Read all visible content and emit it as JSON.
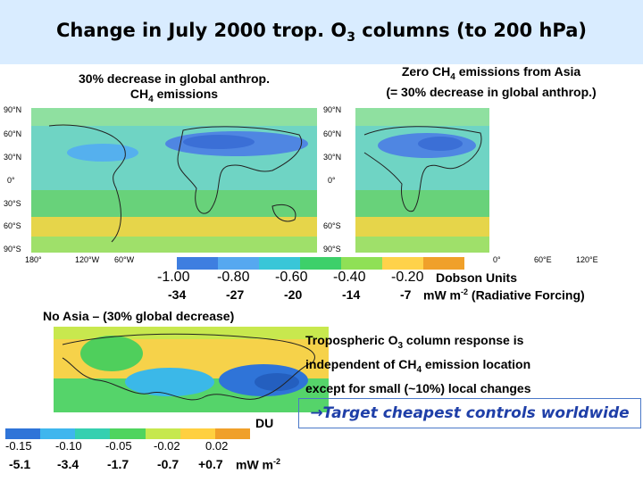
{
  "title": {
    "main": "Change in July 2000 trop. O",
    "sub": "3",
    "rest": " columns (to 200 hPa)"
  },
  "left_panel": {
    "line1": "30% decrease in global anthrop.",
    "line2_a": "CH",
    "line2_sub": "4",
    "line2_b": " emissions"
  },
  "right_panel": {
    "line1_a": "Zero CH",
    "line1_sub": "4",
    "line1_b": " emissions from Asia",
    "line2": "(= 30% decrease in global anthrop.)"
  },
  "left_lat_labels": [
    "90°N",
    "60°N",
    "30°N",
    "0°",
    "30°S",
    "60°S",
    "90°S"
  ],
  "left_lon_labels": [
    "180°",
    "120°W",
    "60°W"
  ],
  "right_lat_labels": [
    "90°N",
    "60°N",
    "30°N",
    "0°",
    "60°S",
    "90°S"
  ],
  "right_lon_labels": [
    "0°",
    "60°E",
    "120°E"
  ],
  "main_colorbar": {
    "colors": [
      "#3e7ee0",
      "#56a8f0",
      "#39c6d8",
      "#3dd06a",
      "#8fe056",
      "#ffd24a",
      "#f0a02a"
    ],
    "ticks": [
      "-1.00",
      "-0.80",
      "-0.60",
      "-0.40",
      "-0.20"
    ],
    "rf_values": [
      "-34",
      "-27",
      "-20",
      "-14",
      "-7"
    ],
    "units_label": "Dobson Units",
    "rf_unit_a": "mW m",
    "rf_unit_sup": "-2",
    "rf_unit_b": " (Radiative Forcing)"
  },
  "no_asia_label": "No Asia – (30% global decrease)",
  "conclusion": {
    "line1_a": "Tropospheric O",
    "line1_sub": "3",
    "line1_b": " column response is",
    "line2_a": "independent of CH",
    "line2_sub": "4",
    "line2_b": " emission location",
    "line3": "except for small (~10%) local changes"
  },
  "callout_text": "→Target cheapest controls worldwide",
  "small_colorbar": {
    "colors": [
      "#2f74d8",
      "#3fb6ee",
      "#35d0b0",
      "#4fd45e",
      "#c6e84e",
      "#ffd040",
      "#f0a02a"
    ],
    "ticks": [
      "-0.15",
      "-0.10",
      "-0.05",
      "-0.02",
      "0.02"
    ],
    "rf_values": [
      "-5.1",
      "-3.4",
      "-1.7",
      "-0.7",
      "+0.7"
    ],
    "units_label": "DU",
    "rf_unit_a": "mW m",
    "rf_unit_sup": "-2"
  }
}
